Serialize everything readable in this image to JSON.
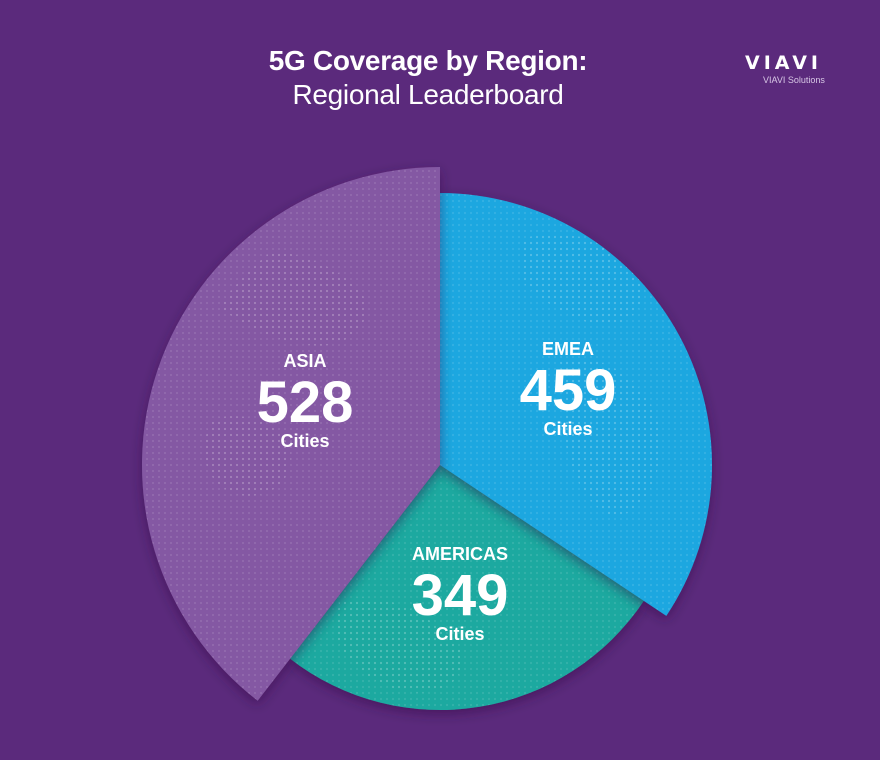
{
  "header": {
    "title": "5G Coverage by Region:",
    "subtitle": "Regional Leaderboard"
  },
  "logo": {
    "mark": "VIAVI",
    "tagline": "VIAVI Solutions"
  },
  "colors": {
    "background": "#5b2a7c",
    "asia": "#8458a3",
    "emea": "#1ba7e0",
    "americas": "#1ca9a0",
    "text": "#ffffff"
  },
  "chart_data": {
    "type": "pie",
    "title": "5G Coverage by Region:",
    "subtitle": "Regional Leaderboard",
    "unit": "Cities",
    "slices": [
      {
        "label": "ASIA",
        "value": 528,
        "unit_label": "Cities",
        "color": "#8458a3"
      },
      {
        "label": "EMEA",
        "value": 459,
        "unit_label": "Cities",
        "color": "#1ba7e0"
      },
      {
        "label": "AMERICAS",
        "value": 349,
        "unit_label": "Cities",
        "color": "#1ca9a0"
      }
    ]
  }
}
